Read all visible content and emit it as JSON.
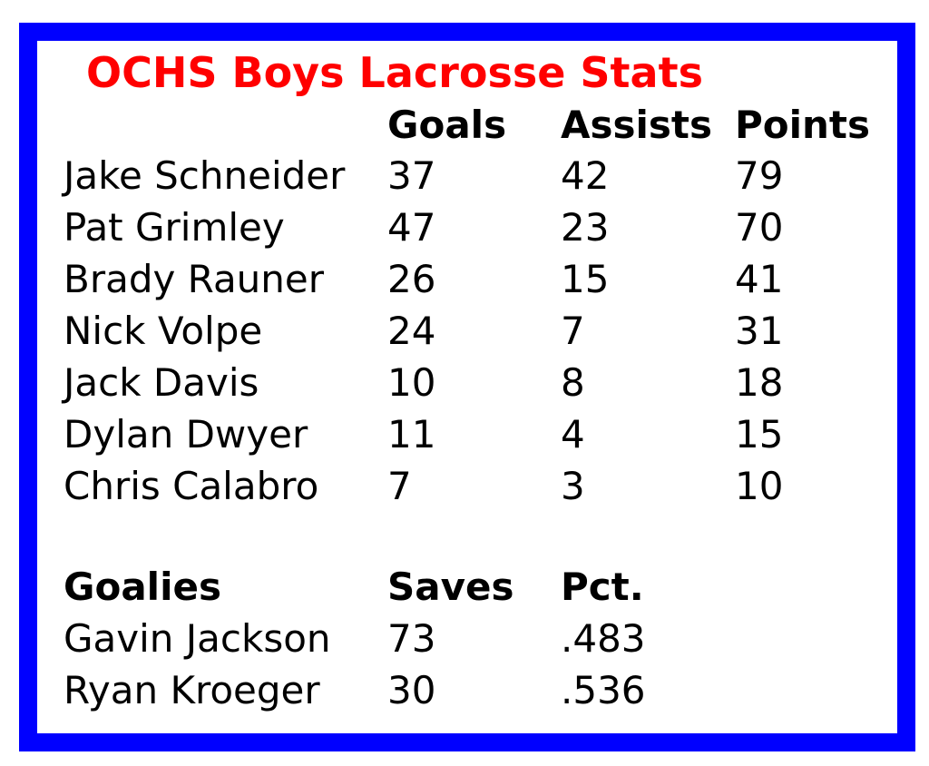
{
  "title": "OCHS Boys Lacrosse Stats",
  "colors": {
    "border": "#0000ff",
    "title": "#ff0000"
  },
  "players": {
    "headers": [
      "",
      "Goals",
      "Assists",
      "Points"
    ],
    "rows": [
      [
        "Jake Schneider",
        "37",
        "42",
        "79"
      ],
      [
        "Pat Grimley",
        "47",
        "23",
        "70"
      ],
      [
        "Brady Rauner",
        "26",
        "15",
        "41"
      ],
      [
        "Nick Volpe",
        "24",
        "7",
        "31"
      ],
      [
        "Jack Davis",
        "10",
        "8",
        "18"
      ],
      [
        "Dylan Dwyer",
        "11",
        "4",
        "15"
      ],
      [
        "Chris Calabro",
        "7",
        "3",
        "10"
      ]
    ]
  },
  "goalies": {
    "headers": [
      "Goalies",
      "Saves",
      "Pct."
    ],
    "rows": [
      [
        "Gavin Jackson",
        "73",
        ".483"
      ],
      [
        "Ryan Kroeger",
        "30",
        ".536"
      ]
    ]
  }
}
